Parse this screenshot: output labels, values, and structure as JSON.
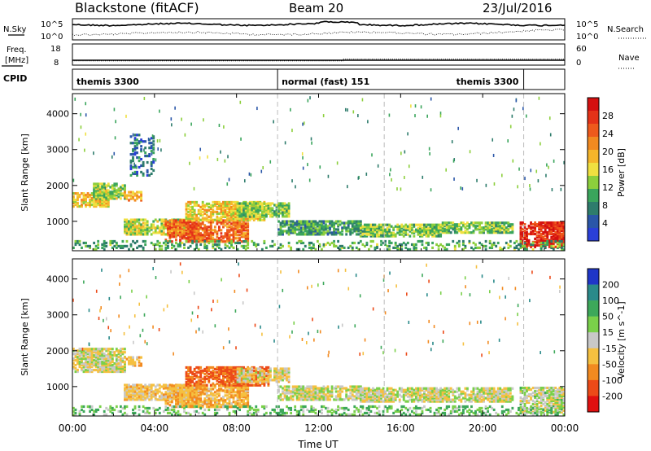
{
  "header": {
    "station": "Blackstone (fitACF)",
    "beam": "Beam 20",
    "date": "23/Jul/2016"
  },
  "top_panels": {
    "nsky_label": "N.Sky",
    "nsearch_label": "N.Search",
    "freq_label_1": "Freq.",
    "freq_label_2": "[MHz]",
    "nave_label": "Nave",
    "cpid_label": "CPID",
    "nsky_tick_hi": "10^5",
    "nsky_tick_lo": "10^0",
    "nsearch_tick_hi": "10^5",
    "nsearch_tick_lo": "10^0",
    "freq_tick_hi": "18",
    "freq_tick_lo": "8",
    "nave_tick_hi": "60",
    "nave_tick_lo": "0",
    "freq_mhz": 10.3,
    "nave_before": 12,
    "nave_after": 17,
    "nave_change_time": 13.2
  },
  "cpid_segments": [
    {
      "label": "themis 3300",
      "start": 0.0,
      "end": 10.0
    },
    {
      "label": "normal (fast) 151",
      "start": 10.0,
      "end": 22.0
    },
    {
      "label": "themis 3300",
      "start": 22.0,
      "end": 24.0
    }
  ],
  "chart_data": [
    {
      "type": "heatmap",
      "name": "power",
      "ylabel": "Slant Range [km]",
      "yticks": [
        "1000",
        "2000",
        "3000",
        "4000"
      ],
      "ylim": [
        180,
        4560
      ],
      "xlim": [
        0,
        24
      ],
      "colorbar_label": "Power [dB]",
      "colorbar_ticks": [
        "4",
        "8",
        "12",
        "16",
        "20",
        "24",
        "28"
      ],
      "colorbar_colors": [
        "#2a3fd8",
        "#2a56a8",
        "#2e7c6c",
        "#3aa55c",
        "#8ccf3c",
        "#f0e040",
        "#f5b52a",
        "#f28a20",
        "#ee5a1c",
        "#e43218",
        "#d41010"
      ],
      "regions": [
        {
          "t": [
            0.0,
            1.8
          ],
          "r": [
            1380,
            1780
          ],
          "level": 16
        },
        {
          "t": [
            1.0,
            2.6
          ],
          "r": [
            1600,
            2050
          ],
          "level": 13
        },
        {
          "t": [
            2.5,
            3.4
          ],
          "r": [
            1550,
            1780
          ],
          "level": 18
        },
        {
          "t": [
            2.8,
            4.0
          ],
          "r": [
            2200,
            3400
          ],
          "level": 6,
          "sparse": true
        },
        {
          "t": [
            2.5,
            5.5
          ],
          "r": [
            600,
            1050
          ],
          "level": 14
        },
        {
          "t": [
            4.5,
            8.5
          ],
          "r": [
            400,
            1000
          ],
          "level": 22
        },
        {
          "t": [
            5.5,
            9.5
          ],
          "r": [
            1000,
            1500
          ],
          "level": 16
        },
        {
          "t": [
            8.0,
            10.5
          ],
          "r": [
            1100,
            1500
          ],
          "level": 12
        },
        {
          "t": [
            10.0,
            14.0
          ],
          "r": [
            600,
            1000
          ],
          "level": 9
        },
        {
          "t": [
            14.0,
            18.0
          ],
          "r": [
            550,
            900
          ],
          "level": 12
        },
        {
          "t": [
            18.0,
            21.5
          ],
          "r": [
            650,
            950
          ],
          "level": 12
        },
        {
          "t": [
            21.8,
            24.0
          ],
          "r": [
            250,
            950
          ],
          "level": 26
        },
        {
          "t": [
            0.0,
            24.0
          ],
          "r": [
            180,
            420
          ],
          "level": 10,
          "sparse": true
        }
      ]
    },
    {
      "type": "heatmap",
      "name": "velocity",
      "ylabel": "Slant Range [km]",
      "yticks": [
        "1000",
        "2000",
        "3000",
        "4000"
      ],
      "ylim": [
        180,
        4560
      ],
      "xlim": [
        0,
        24
      ],
      "xlabel": "Time UT",
      "xticks": [
        "00:00",
        "04:00",
        "08:00",
        "12:00",
        "16:00",
        "20:00",
        "00:00"
      ],
      "colorbar_label": "Velocity [m s^-1]",
      "colorbar_ticks": [
        "200",
        "100",
        "50",
        "15",
        "-15",
        "-50",
        "-100",
        "-200"
      ],
      "colorbar_colors": [
        "#1f36c8",
        "#2a8a8a",
        "#3da85a",
        "#7ad04a",
        "#c8c8c8",
        "#f5c040",
        "#f28a20",
        "#ec4a18",
        "#e01010"
      ],
      "regions": [
        {
          "t": [
            0.0,
            2.6
          ],
          "r": [
            1380,
            2050
          ],
          "level": -10
        },
        {
          "t": [
            2.5,
            3.4
          ],
          "r": [
            1550,
            1780
          ],
          "level": -40
        },
        {
          "t": [
            2.5,
            5.5
          ],
          "r": [
            600,
            1050
          ],
          "level": -30
        },
        {
          "t": [
            4.5,
            8.5
          ],
          "r": [
            400,
            1000
          ],
          "level": -45
        },
        {
          "t": [
            5.5,
            9.5
          ],
          "r": [
            1000,
            1500
          ],
          "level": -120
        },
        {
          "t": [
            8.0,
            10.5
          ],
          "r": [
            1100,
            1500
          ],
          "level": -20
        },
        {
          "t": [
            10.0,
            14.0
          ],
          "r": [
            600,
            1000
          ],
          "level": -8
        },
        {
          "t": [
            14.0,
            21.5
          ],
          "r": [
            550,
            950
          ],
          "level": -5
        },
        {
          "t": [
            21.8,
            24.0
          ],
          "r": [
            250,
            950
          ],
          "level": 0
        },
        {
          "t": [
            0.0,
            24.0
          ],
          "r": [
            180,
            420
          ],
          "level": 30,
          "sparse": true
        }
      ]
    }
  ]
}
